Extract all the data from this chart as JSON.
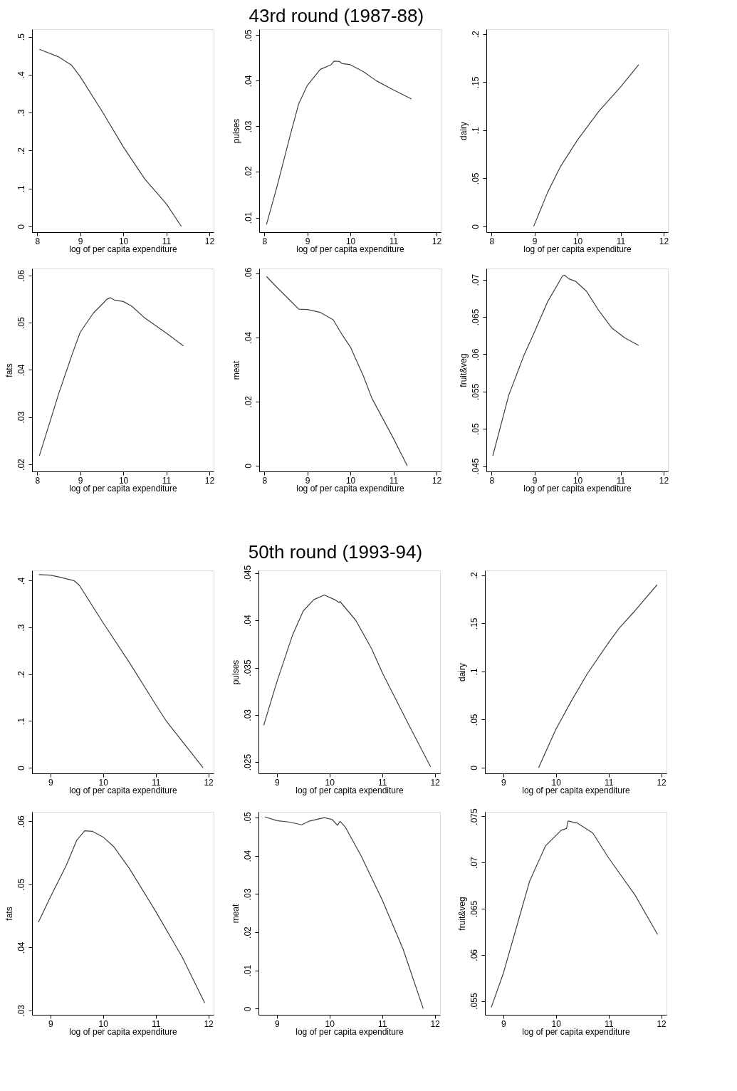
{
  "chart_data": [
    {
      "type": "line",
      "xlabel": "log of per capita expenditure",
      "x": [
        8.05,
        8.5,
        8.8,
        9.0,
        9.5,
        10.0,
        10.5,
        11.0,
        11.35
      ],
      "series": [
        {
          "color": "#404040",
          "values": [
            0.467,
            0.447,
            0.425,
            0.395,
            0.305,
            0.21,
            0.125,
            0.06,
            0.0
          ]
        }
      ],
      "xlim": [
        7.88,
        12.1
      ],
      "xticks": [
        8,
        9,
        10,
        11,
        12
      ],
      "ylim": [
        -0.015,
        0.52
      ],
      "yticks": [
        {
          "value": 0,
          "label": "0"
        },
        {
          "value": 0.1,
          "label": ".1"
        },
        {
          "value": 0.2,
          "label": ".2"
        },
        {
          "value": 0.3,
          "label": ".3"
        },
        {
          "value": 0.4,
          "label": ".4"
        },
        {
          "value": 0.5,
          "label": ".5"
        }
      ],
      "grid": false
    },
    {
      "type": "line",
      "title": "43rd round (1987-88)",
      "xlabel": "log of per capita expenditure",
      "ylabel": "pulses",
      "x": [
        8.05,
        8.3,
        8.6,
        8.8,
        9.0,
        9.3,
        9.55,
        9.62,
        9.75,
        9.8,
        10.0,
        10.3,
        10.6,
        11.0,
        11.42
      ],
      "series": [
        {
          "color": "#404040",
          "values": [
            0.0085,
            0.017,
            0.028,
            0.035,
            0.039,
            0.0425,
            0.0435,
            0.0443,
            0.0442,
            0.0438,
            0.0435,
            0.042,
            0.04,
            0.038,
            0.036
          ]
        }
      ],
      "xlim": [
        7.88,
        12.1
      ],
      "xticks": [
        8,
        9,
        10,
        11,
        12
      ],
      "ylim": [
        0.0068,
        0.0513
      ],
      "yticks": [
        {
          "value": 0.01,
          "label": ".01"
        },
        {
          "value": 0.02,
          "label": ".02"
        },
        {
          "value": 0.03,
          "label": ".03"
        },
        {
          "value": 0.04,
          "label": ".04"
        },
        {
          "value": 0.05,
          "label": ".05"
        }
      ],
      "grid": false
    },
    {
      "type": "line",
      "xlabel": "log of per capita expenditure",
      "ylabel": "dairy",
      "x": [
        8.98,
        9.3,
        9.6,
        10.0,
        10.5,
        11.0,
        11.42
      ],
      "series": [
        {
          "color": "#404040",
          "values": [
            0.0,
            0.035,
            0.062,
            0.09,
            0.12,
            0.145,
            0.168
          ]
        }
      ],
      "xlim": [
        7.88,
        12.1
      ],
      "xticks": [
        8,
        9,
        10,
        11,
        12
      ],
      "ylim": [
        -0.006,
        0.205
      ],
      "yticks": [
        {
          "value": 0,
          "label": "0"
        },
        {
          "value": 0.05,
          "label": ".05"
        },
        {
          "value": 0.1,
          "label": ".1"
        },
        {
          "value": 0.15,
          "label": ".15"
        },
        {
          "value": 0.2,
          "label": ".2"
        }
      ],
      "grid": false
    },
    {
      "type": "line",
      "xlabel": "log of per capita expenditure",
      "ylabel": "fats",
      "x": [
        8.05,
        8.5,
        8.8,
        9.0,
        9.3,
        9.55,
        9.62,
        9.7,
        9.8,
        10.0,
        10.2,
        10.5,
        11.0,
        11.4
      ],
      "series": [
        {
          "color": "#404040",
          "values": [
            0.0218,
            0.035,
            0.043,
            0.048,
            0.052,
            0.0543,
            0.055,
            0.0553,
            0.0548,
            0.0545,
            0.0535,
            0.051,
            0.0478,
            0.0451
          ]
        }
      ],
      "xlim": [
        7.88,
        12.1
      ],
      "xticks": [
        8,
        9,
        10,
        11,
        12
      ],
      "ylim": [
        0.0185,
        0.0615
      ],
      "yticks": [
        {
          "value": 0.02,
          "label": ".02"
        },
        {
          "value": 0.03,
          "label": ".03"
        },
        {
          "value": 0.04,
          "label": ".04"
        },
        {
          "value": 0.05,
          "label": ".05"
        },
        {
          "value": 0.06,
          "label": ".06"
        }
      ],
      "grid": false
    },
    {
      "type": "line",
      "xlabel": "log of per capita expenditure",
      "ylabel": "meat",
      "x": [
        8.05,
        8.3,
        8.6,
        8.8,
        9.0,
        9.3,
        9.6,
        9.8,
        10.0,
        10.3,
        10.5,
        11.0,
        11.32
      ],
      "series": [
        {
          "color": "#404040",
          "values": [
            0.059,
            0.0555,
            0.0515,
            0.0488,
            0.0487,
            0.0478,
            0.0455,
            0.041,
            0.037,
            0.028,
            0.021,
            0.0085,
            0.0
          ]
        }
      ],
      "xlim": [
        7.88,
        12.1
      ],
      "xticks": [
        8,
        9,
        10,
        11,
        12
      ],
      "ylim": [
        -0.0018,
        0.0615
      ],
      "yticks": [
        {
          "value": 0,
          "label": "0"
        },
        {
          "value": 0.02,
          "label": ".02"
        },
        {
          "value": 0.04,
          "label": ".04"
        },
        {
          "value": 0.06,
          "label": ".06"
        }
      ],
      "grid": false
    },
    {
      "type": "line",
      "xlabel": "log of per capita expenditure",
      "ylabel": "fruit&veg",
      "x": [
        8.03,
        8.4,
        8.75,
        9.0,
        9.3,
        9.55,
        9.65,
        9.7,
        9.8,
        9.95,
        10.2,
        10.5,
        10.8,
        11.1,
        11.42
      ],
      "series": [
        {
          "color": "#404040",
          "values": [
            0.0464,
            0.0545,
            0.0598,
            0.063,
            0.067,
            0.0695,
            0.0705,
            0.0706,
            0.0701,
            0.0698,
            0.0685,
            0.0658,
            0.0635,
            0.0622,
            0.0612
          ]
        }
      ],
      "xlim": [
        7.88,
        12.1
      ],
      "xticks": [
        8,
        9,
        10,
        11,
        12
      ],
      "ylim": [
        0.0443,
        0.0715
      ],
      "yticks": [
        {
          "value": 0.045,
          "label": ".045"
        },
        {
          "value": 0.05,
          "label": ".05"
        },
        {
          "value": 0.055,
          "label": ".055"
        },
        {
          "value": 0.06,
          "label": ".06"
        },
        {
          "value": 0.065,
          "label": ".065"
        },
        {
          "value": 0.07,
          "label": ".07"
        }
      ],
      "grid": false
    },
    {
      "type": "line",
      "xlabel": "log of per capita expenditure",
      "x": [
        8.78,
        9.0,
        9.2,
        9.45,
        9.55,
        10.0,
        10.5,
        11.0,
        11.2,
        11.9
      ],
      "series": [
        {
          "color": "#404040",
          "values": [
            0.413,
            0.412,
            0.407,
            0.4,
            0.39,
            0.31,
            0.225,
            0.135,
            0.1,
            0.0
          ]
        }
      ],
      "xlim": [
        8.65,
        12.1
      ],
      "xticks": [
        9,
        10,
        11,
        12
      ],
      "ylim": [
        -0.012,
        0.422
      ],
      "yticks": [
        {
          "value": 0,
          "label": "0"
        },
        {
          "value": 0.1,
          "label": ".1"
        },
        {
          "value": 0.2,
          "label": ".2"
        },
        {
          "value": 0.3,
          "label": ".3"
        },
        {
          "value": 0.4,
          "label": ".4"
        }
      ],
      "grid": false
    },
    {
      "type": "line",
      "title": "50th round (1993-94)",
      "xlabel": "log of per capita expenditure",
      "ylabel": "pulses",
      "x": [
        8.75,
        9.0,
        9.3,
        9.5,
        9.7,
        9.9,
        10.1,
        10.18,
        10.2,
        10.5,
        10.8,
        11.0,
        11.5,
        11.92
      ],
      "series": [
        {
          "color": "#404040",
          "values": [
            0.0289,
            0.0335,
            0.0385,
            0.041,
            0.0422,
            0.0427,
            0.0422,
            0.0419,
            0.042,
            0.04,
            0.037,
            0.0345,
            0.029,
            0.0245
          ]
        }
      ],
      "xlim": [
        8.65,
        12.1
      ],
      "xticks": [
        9,
        10,
        11,
        12
      ],
      "ylim": [
        0.0238,
        0.0453
      ],
      "yticks": [
        {
          "value": 0.025,
          "label": ".025"
        },
        {
          "value": 0.03,
          "label": ".03"
        },
        {
          "value": 0.035,
          "label": ".035"
        },
        {
          "value": 0.04,
          "label": ".04"
        },
        {
          "value": 0.045,
          "label": ".045"
        }
      ],
      "grid": false
    },
    {
      "type": "line",
      "xlabel": "log of per capita expenditure",
      "ylabel": "dairy",
      "x": [
        9.67,
        10.0,
        10.3,
        10.6,
        11.0,
        11.2,
        11.5,
        11.92
      ],
      "series": [
        {
          "color": "#404040",
          "values": [
            0.0,
            0.04,
            0.07,
            0.098,
            0.13,
            0.145,
            0.163,
            0.19
          ]
        }
      ],
      "xlim": [
        8.65,
        12.1
      ],
      "xticks": [
        9,
        10,
        11,
        12
      ],
      "ylim": [
        -0.006,
        0.205
      ],
      "yticks": [
        {
          "value": 0,
          "label": "0"
        },
        {
          "value": 0.05,
          "label": ".05"
        },
        {
          "value": 0.1,
          "label": ".1"
        },
        {
          "value": 0.15,
          "label": ".15"
        },
        {
          "value": 0.2,
          "label": ".2"
        }
      ],
      "grid": false
    },
    {
      "type": "line",
      "xlabel": "log of per capita expenditure",
      "ylabel": "fats",
      "x": [
        8.77,
        9.0,
        9.3,
        9.5,
        9.65,
        9.8,
        10.0,
        10.2,
        10.5,
        11.0,
        11.5,
        11.93
      ],
      "series": [
        {
          "color": "#404040",
          "values": [
            0.044,
            0.048,
            0.053,
            0.057,
            0.0585,
            0.0584,
            0.0575,
            0.056,
            0.0525,
            0.0457,
            0.0385,
            0.0312
          ]
        }
      ],
      "xlim": [
        8.65,
        12.1
      ],
      "xticks": [
        9,
        10,
        11,
        12
      ],
      "ylim": [
        0.0293,
        0.0615
      ],
      "yticks": [
        {
          "value": 0.03,
          "label": ".03"
        },
        {
          "value": 0.04,
          "label": ".04"
        },
        {
          "value": 0.05,
          "label": ".05"
        },
        {
          "value": 0.06,
          "label": ".06"
        }
      ],
      "grid": false
    },
    {
      "type": "line",
      "xlabel": "log of per capita expenditure",
      "ylabel": "meat",
      "x": [
        8.77,
        9.0,
        9.25,
        9.47,
        9.6,
        9.9,
        10.05,
        10.15,
        10.2,
        10.3,
        10.6,
        11.0,
        11.4,
        11.78
      ],
      "series": [
        {
          "color": "#404040",
          "values": [
            0.0502,
            0.0492,
            0.0488,
            0.0481,
            0.049,
            0.05,
            0.0495,
            0.048,
            0.049,
            0.0475,
            0.04,
            0.0285,
            0.0155,
            0.0
          ]
        }
      ],
      "xlim": [
        8.65,
        12.1
      ],
      "xticks": [
        9,
        10,
        11,
        12
      ],
      "ylim": [
        -0.0016,
        0.0515
      ],
      "yticks": [
        {
          "value": 0,
          "label": "0"
        },
        {
          "value": 0.01,
          "label": ".01"
        },
        {
          "value": 0.02,
          "label": ".02"
        },
        {
          "value": 0.03,
          "label": ".03"
        },
        {
          "value": 0.04,
          "label": ".04"
        },
        {
          "value": 0.05,
          "label": ".05"
        }
      ],
      "grid": false
    },
    {
      "type": "line",
      "xlabel": "log of per capita expenditure",
      "ylabel": "fruit&veg",
      "x": [
        8.77,
        9.0,
        9.3,
        9.5,
        9.8,
        10.1,
        10.2,
        10.23,
        10.4,
        10.7,
        11.0,
        11.5,
        11.93
      ],
      "series": [
        {
          "color": "#404040",
          "values": [
            0.0543,
            0.058,
            0.064,
            0.068,
            0.0718,
            0.0735,
            0.0737,
            0.0745,
            0.0743,
            0.0732,
            0.0705,
            0.0665,
            0.0622
          ]
        }
      ],
      "xlim": [
        8.65,
        12.1
      ],
      "xticks": [
        9,
        10,
        11,
        12
      ],
      "ylim": [
        0.0535,
        0.0755
      ],
      "yticks": [
        {
          "value": 0.055,
          "label": ".055"
        },
        {
          "value": 0.06,
          "label": ".06"
        },
        {
          "value": 0.065,
          "label": ".065"
        },
        {
          "value": 0.07,
          "label": ".07"
        },
        {
          "value": 0.075,
          "label": ".075"
        }
      ],
      "grid": false
    }
  ]
}
